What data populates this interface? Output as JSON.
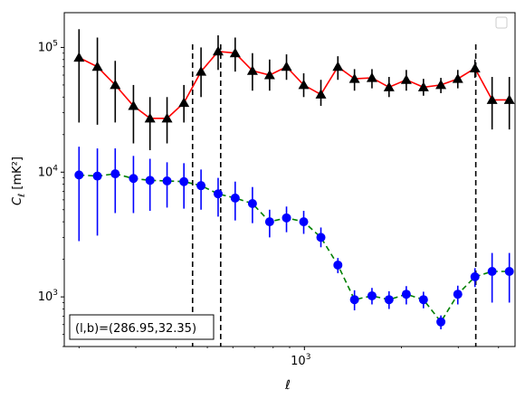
{
  "chart_data": {
    "type": "scatter",
    "xlabel": "ℓ",
    "ylabel": "C_ℓ [mK²]",
    "xscale": "log",
    "yscale": "log",
    "xlim": [
      180,
      4500
    ],
    "ylim": [
      400,
      190000
    ],
    "xticks": [
      {
        "value": 1000,
        "label": "10",
        "exp": "3"
      }
    ],
    "yticks": [
      {
        "value": 1000,
        "label": "10",
        "exp": "3"
      },
      {
        "value": 10000,
        "label": "10",
        "exp": "4"
      },
      {
        "value": 100000,
        "label": "10",
        "exp": "5"
      }
    ],
    "vlines": [
      450,
      550,
      3400
    ],
    "annotation": "(l,b)=(286.95,32.35)",
    "legend": {
      "placement": "top-right",
      "entries": []
    },
    "series": [
      {
        "marker": "triangle",
        "marker_color": "#000000",
        "line_color": "#ff0000",
        "line_style": "solid",
        "x": [
          200,
          228,
          259,
          295,
          332,
          375,
          423,
          478,
          540,
          610,
          690,
          780,
          880,
          995,
          1125,
          1270,
          1430,
          1620,
          1830,
          2070,
          2340,
          2650,
          2990,
          3380,
          3820,
          4320
        ],
        "y": [
          83000,
          70000,
          50000,
          34000,
          27000,
          27000,
          36000,
          64000,
          93000,
          90000,
          65000,
          60000,
          70000,
          50000,
          42000,
          70000,
          56000,
          57000,
          48000,
          55000,
          48000,
          50000,
          56000,
          68000,
          38000,
          38000
        ],
        "err_lo": [
          25000,
          24000,
          25000,
          17000,
          15000,
          17000,
          25000,
          40000,
          66000,
          64000,
          45000,
          45000,
          55000,
          40000,
          34000,
          55000,
          45000,
          47000,
          40000,
          45000,
          41000,
          43000,
          47000,
          57000,
          22000,
          22000
        ],
        "err_hi": [
          140000,
          120000,
          78000,
          50000,
          40000,
          40000,
          50000,
          100000,
          125000,
          120000,
          90000,
          80000,
          88000,
          62000,
          55000,
          85000,
          67000,
          67000,
          58000,
          66000,
          56000,
          57000,
          66000,
          80000,
          58000,
          58000
        ]
      },
      {
        "marker": "circle",
        "marker_color": "#0000ff",
        "line_color": "#008000",
        "line_style": "dashed",
        "x": [
          200,
          228,
          259,
          295,
          332,
          375,
          423,
          478,
          540,
          610,
          690,
          780,
          880,
          995,
          1125,
          1270,
          1430,
          1620,
          1830,
          2070,
          2340,
          2650,
          2990,
          3380,
          3820,
          4320
        ],
        "y": [
          9500,
          9300,
          9700,
          8900,
          8600,
          8500,
          8400,
          7800,
          6700,
          6200,
          5600,
          4000,
          4300,
          4000,
          3000,
          1800,
          950,
          1020,
          950,
          1050,
          950,
          630,
          1050,
          1450,
          1600,
          1600
        ],
        "err_lo": [
          2800,
          3100,
          4700,
          4700,
          4900,
          5200,
          5100,
          5000,
          4400,
          4100,
          3900,
          3000,
          3300,
          3200,
          2500,
          1550,
          780,
          870,
          800,
          870,
          810,
          550,
          870,
          1200,
          900,
          900
        ],
        "err_hi": [
          16000,
          15500,
          15500,
          13500,
          12800,
          12000,
          11800,
          10500,
          9000,
          8400,
          7600,
          5000,
          5300,
          4900,
          3600,
          2050,
          1130,
          1180,
          1110,
          1220,
          1100,
          710,
          1230,
          1700,
          2250,
          2250
        ]
      }
    ]
  }
}
